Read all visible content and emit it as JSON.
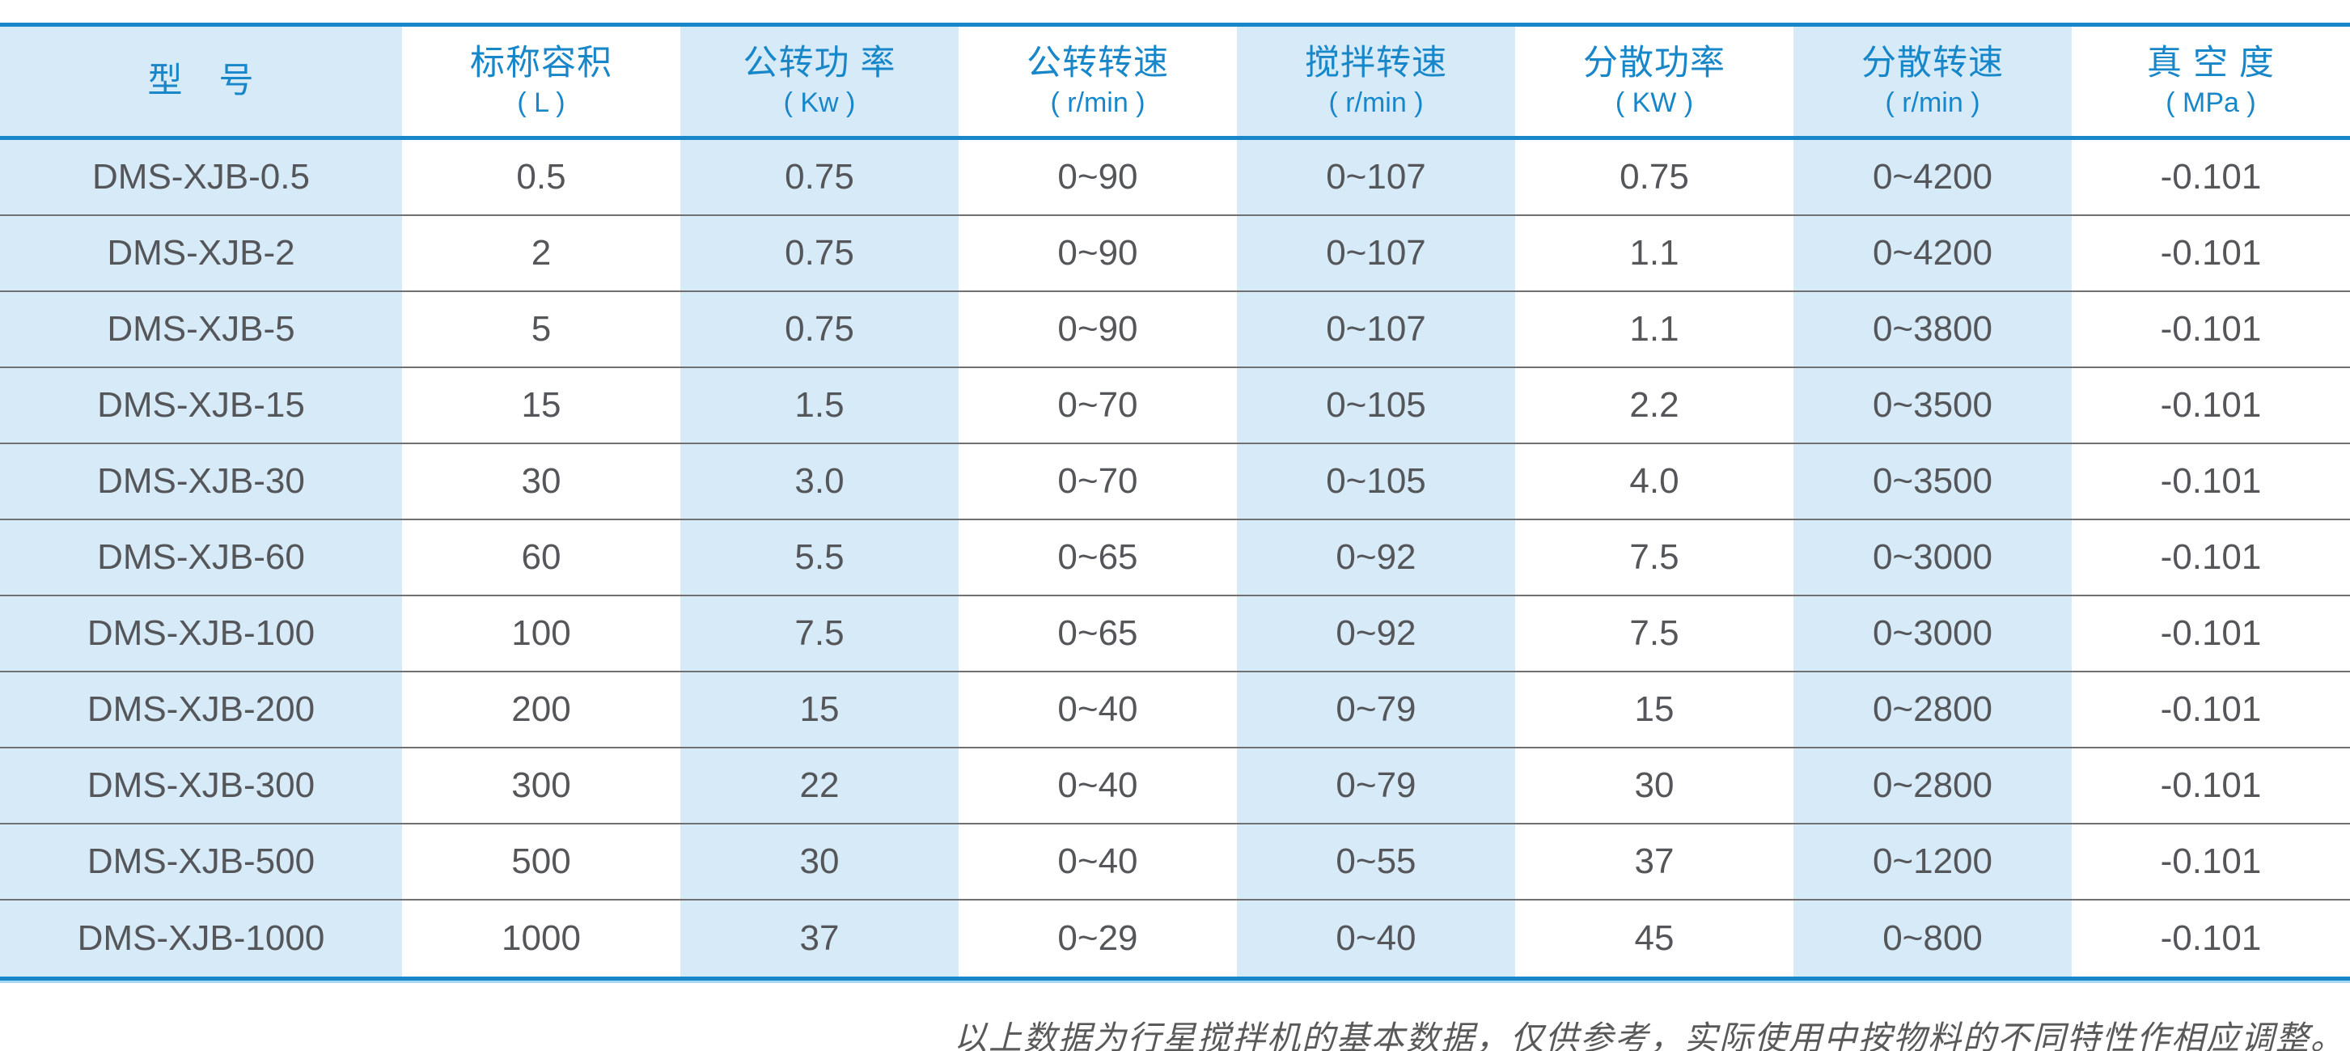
{
  "table": {
    "columns": [
      {
        "key": "model",
        "title": "型　号",
        "unit": ""
      },
      {
        "key": "nominal-capacity",
        "title": "标称容积",
        "unit": "( L )"
      },
      {
        "key": "revolution-power",
        "title": "公转功 率",
        "unit": "( Kw )"
      },
      {
        "key": "revolution-speed",
        "title": "公转转速",
        "unit": "( r/min )"
      },
      {
        "key": "stirring-speed",
        "title": "搅拌转速",
        "unit": "( r/min )"
      },
      {
        "key": "dispersion-power",
        "title": "分散功率",
        "unit": "( KW )"
      },
      {
        "key": "dispersion-speed",
        "title": "分散转速",
        "unit": "( r/min )"
      },
      {
        "key": "vacuum-degree",
        "title": "真 空 度",
        "unit": "( MPa )"
      }
    ],
    "rows": [
      [
        "DMS-XJB-0.5",
        "0.5",
        "0.75",
        "0~90",
        "0~107",
        "0.75",
        "0~4200",
        "-0.101"
      ],
      [
        "DMS-XJB-2",
        "2",
        "0.75",
        "0~90",
        "0~107",
        "1.1",
        "0~4200",
        "-0.101"
      ],
      [
        "DMS-XJB-5",
        "5",
        "0.75",
        "0~90",
        "0~107",
        "1.1",
        "0~3800",
        "-0.101"
      ],
      [
        "DMS-XJB-15",
        "15",
        "1.5",
        "0~70",
        "0~105",
        "2.2",
        "0~3500",
        "-0.101"
      ],
      [
        "DMS-XJB-30",
        "30",
        "3.0",
        "0~70",
        "0~105",
        "4.0",
        "0~3500",
        "-0.101"
      ],
      [
        "DMS-XJB-60",
        "60",
        "5.5",
        "0~65",
        "0~92",
        "7.5",
        "0~3000",
        "-0.101"
      ],
      [
        "DMS-XJB-100",
        "100",
        "7.5",
        "0~65",
        "0~92",
        "7.5",
        "0~3000",
        "-0.101"
      ],
      [
        "DMS-XJB-200",
        "200",
        "15",
        "0~40",
        "0~79",
        "15",
        "0~2800",
        "-0.101"
      ],
      [
        "DMS-XJB-300",
        "300",
        "22",
        "0~40",
        "0~79",
        "30",
        "0~2800",
        "-0.101"
      ],
      [
        "DMS-XJB-500",
        "500",
        "30",
        "0~40",
        "0~55",
        "37",
        "0~1200",
        "-0.101"
      ],
      [
        "DMS-XJB-1000",
        "1000",
        "37",
        "0~29",
        "0~40",
        "45",
        "0~800",
        "-0.101"
      ]
    ]
  },
  "footer": {
    "note": "以上数据为行星搅拌机的基本数据，仅供参考，实际使用中按物料的不同特性作相应调整。"
  },
  "colors": {
    "accent_blue": "#1787c9",
    "accent_light_blue": "#a9d9f2",
    "stripe_light_blue": "#d7eaf7",
    "cell_text_gray": "#54565a",
    "row_separator_gray": "#707070",
    "note_text_gray": "#595959"
  }
}
